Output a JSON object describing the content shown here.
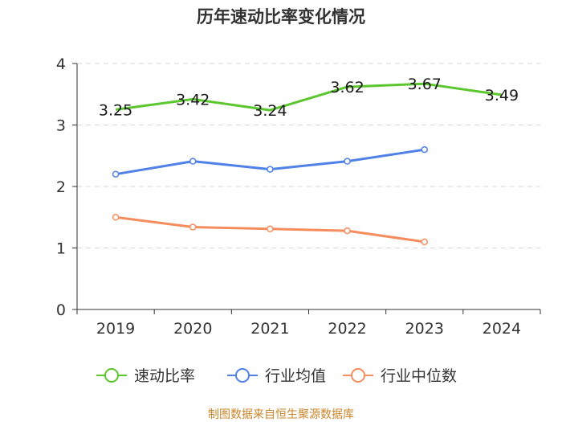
{
  "chart_data": {
    "type": "line",
    "title": "历年速动比率变化情况",
    "categories": [
      "2019",
      "2020",
      "2021",
      "2022",
      "2023",
      "2024"
    ],
    "ylim": [
      0,
      4
    ],
    "yticks": [
      0,
      1,
      2,
      3,
      4
    ],
    "grid": true,
    "legend_position": "bottom",
    "series": [
      {
        "name": "速动比率",
        "values": [
          3.25,
          3.42,
          3.24,
          3.62,
          3.67,
          3.49
        ],
        "color": "#5cc62e",
        "labels": [
          "3.25",
          "3.42",
          "3.24",
          "3.62",
          "3.67",
          "3.49"
        ]
      },
      {
        "name": "行业均值",
        "values": [
          2.2,
          2.41,
          2.28,
          2.41,
          2.6,
          null
        ],
        "color": "#4f81e6"
      },
      {
        "name": "行业中位数",
        "values": [
          1.5,
          1.34,
          1.31,
          1.28,
          1.1,
          null
        ],
        "color": "#f58d5e"
      }
    ],
    "source": "制图数据来自恒生聚源数据库"
  }
}
